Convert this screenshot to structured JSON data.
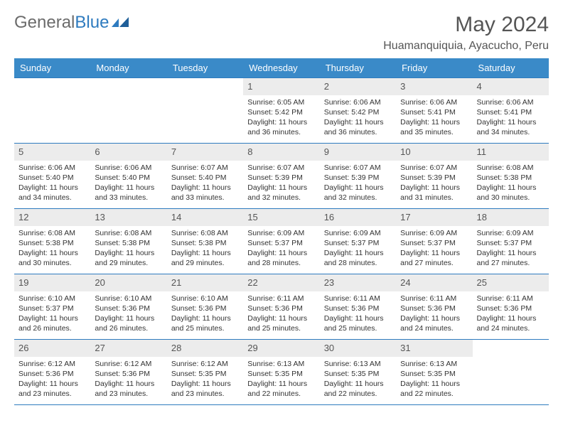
{
  "brand": {
    "part1": "General",
    "part2": "Blue"
  },
  "title": "May 2024",
  "location": "Huamanquiquia, Ayacucho, Peru",
  "colors": {
    "header_bg": "#3a8ac8",
    "border": "#2e7bbf",
    "daynum_bg": "#ececec",
    "text": "#333333",
    "muted": "#555555"
  },
  "weekdays": [
    "Sunday",
    "Monday",
    "Tuesday",
    "Wednesday",
    "Thursday",
    "Friday",
    "Saturday"
  ],
  "weeks": [
    [
      null,
      null,
      null,
      {
        "n": "1",
        "sr": "6:05 AM",
        "ss": "5:42 PM",
        "dl": "11 hours and 36 minutes."
      },
      {
        "n": "2",
        "sr": "6:06 AM",
        "ss": "5:42 PM",
        "dl": "11 hours and 36 minutes."
      },
      {
        "n": "3",
        "sr": "6:06 AM",
        "ss": "5:41 PM",
        "dl": "11 hours and 35 minutes."
      },
      {
        "n": "4",
        "sr": "6:06 AM",
        "ss": "5:41 PM",
        "dl": "11 hours and 34 minutes."
      }
    ],
    [
      {
        "n": "5",
        "sr": "6:06 AM",
        "ss": "5:40 PM",
        "dl": "11 hours and 34 minutes."
      },
      {
        "n": "6",
        "sr": "6:06 AM",
        "ss": "5:40 PM",
        "dl": "11 hours and 33 minutes."
      },
      {
        "n": "7",
        "sr": "6:07 AM",
        "ss": "5:40 PM",
        "dl": "11 hours and 33 minutes."
      },
      {
        "n": "8",
        "sr": "6:07 AM",
        "ss": "5:39 PM",
        "dl": "11 hours and 32 minutes."
      },
      {
        "n": "9",
        "sr": "6:07 AM",
        "ss": "5:39 PM",
        "dl": "11 hours and 32 minutes."
      },
      {
        "n": "10",
        "sr": "6:07 AM",
        "ss": "5:39 PM",
        "dl": "11 hours and 31 minutes."
      },
      {
        "n": "11",
        "sr": "6:08 AM",
        "ss": "5:38 PM",
        "dl": "11 hours and 30 minutes."
      }
    ],
    [
      {
        "n": "12",
        "sr": "6:08 AM",
        "ss": "5:38 PM",
        "dl": "11 hours and 30 minutes."
      },
      {
        "n": "13",
        "sr": "6:08 AM",
        "ss": "5:38 PM",
        "dl": "11 hours and 29 minutes."
      },
      {
        "n": "14",
        "sr": "6:08 AM",
        "ss": "5:38 PM",
        "dl": "11 hours and 29 minutes."
      },
      {
        "n": "15",
        "sr": "6:09 AM",
        "ss": "5:37 PM",
        "dl": "11 hours and 28 minutes."
      },
      {
        "n": "16",
        "sr": "6:09 AM",
        "ss": "5:37 PM",
        "dl": "11 hours and 28 minutes."
      },
      {
        "n": "17",
        "sr": "6:09 AM",
        "ss": "5:37 PM",
        "dl": "11 hours and 27 minutes."
      },
      {
        "n": "18",
        "sr": "6:09 AM",
        "ss": "5:37 PM",
        "dl": "11 hours and 27 minutes."
      }
    ],
    [
      {
        "n": "19",
        "sr": "6:10 AM",
        "ss": "5:37 PM",
        "dl": "11 hours and 26 minutes."
      },
      {
        "n": "20",
        "sr": "6:10 AM",
        "ss": "5:36 PM",
        "dl": "11 hours and 26 minutes."
      },
      {
        "n": "21",
        "sr": "6:10 AM",
        "ss": "5:36 PM",
        "dl": "11 hours and 25 minutes."
      },
      {
        "n": "22",
        "sr": "6:11 AM",
        "ss": "5:36 PM",
        "dl": "11 hours and 25 minutes."
      },
      {
        "n": "23",
        "sr": "6:11 AM",
        "ss": "5:36 PM",
        "dl": "11 hours and 25 minutes."
      },
      {
        "n": "24",
        "sr": "6:11 AM",
        "ss": "5:36 PM",
        "dl": "11 hours and 24 minutes."
      },
      {
        "n": "25",
        "sr": "6:11 AM",
        "ss": "5:36 PM",
        "dl": "11 hours and 24 minutes."
      }
    ],
    [
      {
        "n": "26",
        "sr": "6:12 AM",
        "ss": "5:36 PM",
        "dl": "11 hours and 23 minutes."
      },
      {
        "n": "27",
        "sr": "6:12 AM",
        "ss": "5:36 PM",
        "dl": "11 hours and 23 minutes."
      },
      {
        "n": "28",
        "sr": "6:12 AM",
        "ss": "5:35 PM",
        "dl": "11 hours and 23 minutes."
      },
      {
        "n": "29",
        "sr": "6:13 AM",
        "ss": "5:35 PM",
        "dl": "11 hours and 22 minutes."
      },
      {
        "n": "30",
        "sr": "6:13 AM",
        "ss": "5:35 PM",
        "dl": "11 hours and 22 minutes."
      },
      {
        "n": "31",
        "sr": "6:13 AM",
        "ss": "5:35 PM",
        "dl": "11 hours and 22 minutes."
      },
      null
    ]
  ],
  "labels": {
    "sunrise": "Sunrise:",
    "sunset": "Sunset:",
    "daylight": "Daylight:"
  }
}
